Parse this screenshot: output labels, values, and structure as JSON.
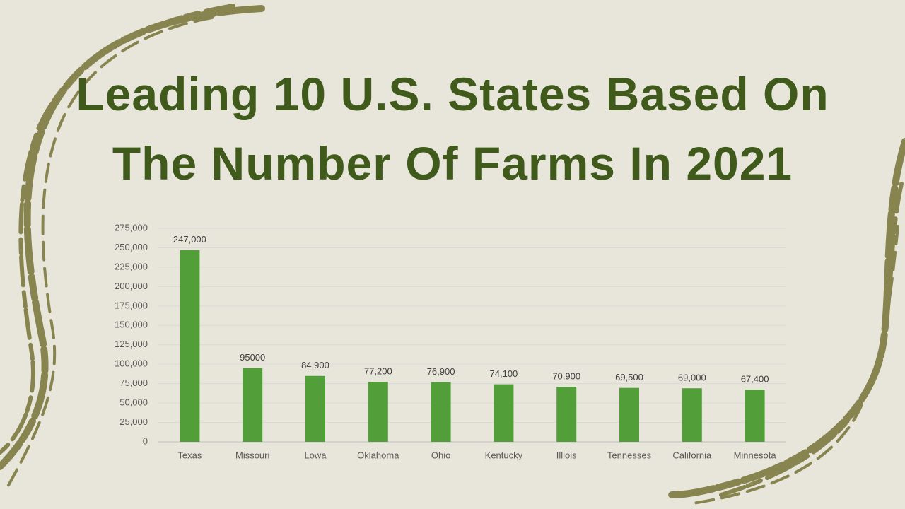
{
  "chart_data": {
    "type": "bar",
    "title": "Leading 10 U.S. States Based On The Number Of Farms In 2021",
    "categories": [
      "Texas",
      "Missouri",
      "Lowa",
      "Oklahoma",
      "Ohio",
      "Kentucky",
      "Illiois",
      "Tennesses",
      "California",
      "Minnesota"
    ],
    "values": [
      247000,
      95000,
      84900,
      77200,
      76900,
      74100,
      70900,
      69500,
      69000,
      67400
    ],
    "value_labels": [
      "247,000",
      "95000",
      "84,900",
      "77,200",
      "76,900",
      "74,100",
      "70,900",
      "69,500",
      "69,000",
      "67,400"
    ],
    "color": "#529e39",
    "ylim": [
      0,
      275000
    ],
    "yticks": [
      0,
      {
        "value": 25000,
        "label": "25,000"
      },
      {
        "value": 50000,
        "label": "50,000"
      },
      {
        "value": 75000,
        "label": "75,000"
      },
      {
        "value": 100000,
        "label": "100,000"
      },
      {
        "value": 125000,
        "label": "125,000"
      },
      {
        "value": 150000,
        "label": "150,000"
      },
      {
        "value": 175000,
        "label": "175,000"
      },
      {
        "value": 200000,
        "label": "200,000"
      },
      {
        "value": 225000,
        "label": "225,000"
      },
      {
        "value": 250000,
        "label": "250,000"
      },
      {
        "value": 275000,
        "label": "275,000"
      }
    ],
    "grid": true
  }
}
